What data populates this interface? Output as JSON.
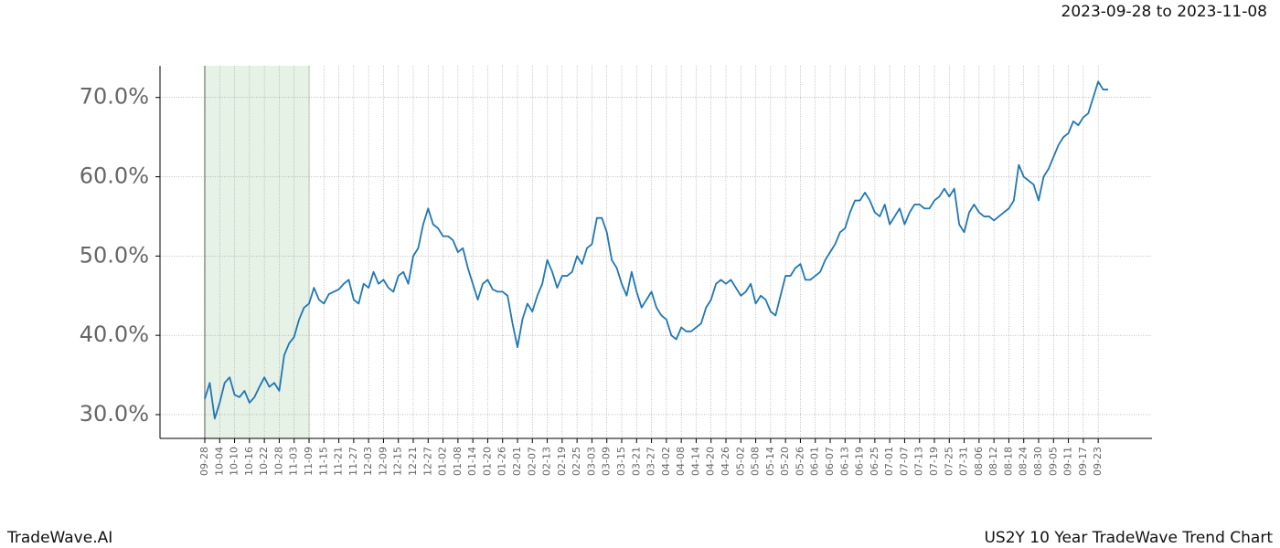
{
  "chart_data": {
    "type": "line",
    "subtitle": "2023-09-28 to 2023-11-08",
    "footer_left": "TradeWave.AI",
    "footer_right": "US2Y 10 Year TradeWave Trend Chart",
    "categories": [
      "09-28",
      null,
      null,
      "10-04",
      null,
      null,
      "10-10",
      null,
      null,
      "10-16",
      null,
      null,
      "10-22",
      null,
      null,
      "10-28",
      null,
      null,
      "11-03",
      null,
      null,
      "11-09",
      null,
      null,
      "11-15",
      null,
      null,
      "11-21",
      null,
      null,
      "11-27",
      null,
      null,
      "12-03",
      null,
      null,
      "12-09",
      null,
      null,
      "12-15",
      null,
      null,
      "12-21",
      null,
      null,
      "12-27",
      null,
      null,
      "01-02",
      null,
      null,
      "01-08",
      null,
      null,
      "01-14",
      null,
      null,
      "01-20",
      null,
      null,
      "01-26",
      null,
      null,
      "02-01",
      null,
      null,
      "02-07",
      null,
      null,
      "02-13",
      null,
      null,
      "02-19",
      null,
      null,
      "02-25",
      null,
      null,
      "03-03",
      null,
      null,
      "03-09",
      null,
      null,
      "03-15",
      null,
      null,
      "03-21",
      null,
      null,
      "03-27",
      null,
      null,
      "04-02",
      null,
      null,
      "04-08",
      null,
      null,
      "04-14",
      null,
      null,
      "04-20",
      null,
      null,
      "04-26",
      null,
      null,
      "05-02",
      null,
      null,
      "05-08",
      null,
      null,
      "05-14",
      null,
      null,
      "05-20",
      null,
      null,
      "05-26",
      null,
      null,
      "06-01",
      null,
      null,
      "06-07",
      null,
      null,
      "06-13",
      null,
      null,
      "06-19",
      null,
      null,
      "06-25",
      null,
      null,
      "07-01",
      null,
      null,
      "07-07",
      null,
      null,
      "07-13",
      null,
      null,
      "07-19",
      null,
      null,
      "07-25",
      null,
      null,
      "07-31",
      null,
      null,
      "08-06",
      null,
      null,
      "08-12",
      null,
      null,
      "08-18",
      null,
      null,
      "08-24",
      null,
      null,
      "08-30",
      null,
      null,
      "09-05",
      null,
      null,
      "09-11",
      null,
      null,
      "09-17",
      null,
      null,
      "09-23",
      null,
      null
    ],
    "series": [
      {
        "color": "#1f77b4",
        "values": [
          32,
          34,
          29.5,
          31.5,
          34,
          34.7,
          32.5,
          32.2,
          33,
          31.5,
          32.2,
          33.5,
          34.7,
          33.5,
          34,
          33,
          37.5,
          39,
          39.8,
          42,
          43.5,
          44,
          46,
          44.5,
          44,
          45.2,
          45.5,
          45.8,
          46.5,
          47,
          44.5,
          44,
          46.5,
          46,
          48,
          46.5,
          47,
          46,
          45.5,
          47.5,
          48,
          46.5,
          50,
          51,
          54,
          56,
          54,
          53.5,
          52.5,
          52.5,
          52,
          50.5,
          51,
          48.5,
          46.5,
          44.5,
          46.5,
          47,
          45.8,
          45.5,
          45.5,
          45,
          41.5,
          38.5,
          42,
          44,
          43,
          45,
          46.5,
          49.5,
          48,
          46,
          47.5,
          47.5,
          48,
          50,
          49,
          51,
          51.5,
          54.8,
          54.8,
          53,
          49.5,
          48.5,
          46.5,
          45,
          48,
          45.5,
          43.5,
          44.5,
          45.5,
          43.5,
          42.5,
          42,
          40,
          39.5,
          41,
          40.5,
          40.5,
          41,
          41.5,
          43.5,
          44.5,
          46.5,
          47,
          46.5,
          47,
          46,
          45,
          45.5,
          46.5,
          44,
          45,
          44.5,
          43,
          42.5,
          45,
          47.5,
          47.5,
          48.5,
          49,
          47,
          47,
          47.5,
          48,
          49.5,
          50.5,
          51.5,
          53,
          53.5,
          55.5,
          57,
          57,
          58,
          57,
          55.5,
          55,
          56.5,
          54,
          55,
          56,
          54,
          55.5,
          56.5,
          56.5,
          56,
          56,
          57,
          57.5,
          58.5,
          57.5,
          58.5,
          54,
          53,
          55.5,
          56.5,
          55.5,
          55,
          55,
          54.5,
          55,
          55.5,
          56,
          57,
          61.5,
          60,
          59.5,
          59,
          57,
          60,
          61,
          62.5,
          64,
          65,
          65.5,
          67,
          66.5,
          67.5,
          68,
          70,
          72,
          71,
          71
        ]
      }
    ],
    "shaded_span": {
      "from": "09-28",
      "to": "11-09",
      "color": "#e6f2e6"
    },
    "ylim": [
      27,
      74
    ],
    "yticks": [
      {
        "value": 30,
        "label": "30.0%"
      },
      {
        "value": 40,
        "label": "40.0%"
      },
      {
        "value": 50,
        "label": "50.0%"
      },
      {
        "value": 60,
        "label": "60.0%"
      },
      {
        "value": 70,
        "label": "70.0%"
      }
    ],
    "grid": true
  }
}
